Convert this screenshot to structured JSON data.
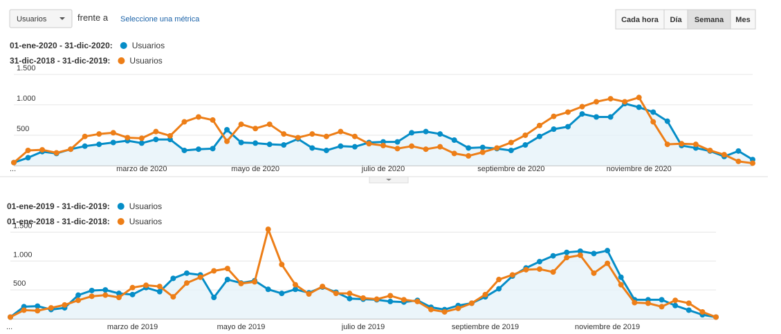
{
  "toolbar": {
    "metric": "Usuarios",
    "versus": "frente a",
    "select_metric": "Seleccione una métrica",
    "buttons": [
      "Cada hora",
      "Día",
      "Semana",
      "Mes"
    ],
    "selected": "Semana"
  },
  "chart_data": [
    {
      "type": "line",
      "categories": [
        "...",
        null,
        null,
        null,
        null,
        null,
        null,
        null,
        null,
        "marzo de 2020",
        null,
        null,
        null,
        null,
        null,
        null,
        null,
        "mayo de 2020",
        null,
        null,
        null,
        null,
        null,
        null,
        null,
        null,
        "julio de 2020",
        null,
        null,
        null,
        null,
        null,
        null,
        null,
        null,
        "septiembre de 2020",
        null,
        null,
        null,
        null,
        null,
        null,
        null,
        null,
        "noviembre de 2020",
        null,
        null,
        null,
        null,
        null,
        null,
        null,
        null
      ],
      "series": [
        {
          "period": "01-ene-2020 - 31-dic-2020:",
          "name": "Usuarios",
          "color": "#058dc7",
          "values": [
            50,
            130,
            230,
            200,
            270,
            320,
            350,
            380,
            410,
            370,
            430,
            430,
            250,
            270,
            280,
            590,
            380,
            370,
            350,
            340,
            440,
            290,
            250,
            320,
            310,
            380,
            390,
            390,
            540,
            560,
            520,
            420,
            290,
            300,
            280,
            250,
            340,
            480,
            600,
            640,
            850,
            800,
            800,
            1020,
            960,
            880,
            730,
            330,
            290,
            240,
            150,
            240,
            100
          ]
        },
        {
          "period": "31-dic-2018 - 31-dic-2019:",
          "name": "Usuarios",
          "color": "#ed7e17",
          "values": [
            50,
            250,
            260,
            210,
            270,
            480,
            520,
            540,
            460,
            450,
            560,
            490,
            720,
            800,
            750,
            400,
            680,
            610,
            680,
            520,
            460,
            520,
            480,
            560,
            480,
            360,
            330,
            280,
            320,
            270,
            310,
            200,
            160,
            220,
            290,
            380,
            500,
            660,
            810,
            880,
            970,
            1050,
            1100,
            1050,
            1120,
            720,
            350,
            360,
            350,
            250,
            180,
            70,
            40
          ]
        }
      ],
      "ylim": [
        0,
        1600
      ],
      "yticks": [
        500,
        {
          "value": 1000,
          "label": "1.000"
        },
        {
          "value": 1500,
          "label": "1.500"
        }
      ],
      "grid": true
    },
    {
      "type": "line",
      "categories": [
        "...",
        null,
        null,
        null,
        null,
        null,
        null,
        null,
        null,
        "marzo de 2019",
        null,
        null,
        null,
        null,
        null,
        null,
        null,
        "mayo de 2019",
        null,
        null,
        null,
        null,
        null,
        null,
        null,
        null,
        "julio de 2019",
        null,
        null,
        null,
        null,
        null,
        null,
        null,
        null,
        "septiembre de 2019",
        null,
        null,
        null,
        null,
        null,
        null,
        null,
        null,
        "noviembre de 2019",
        null,
        null,
        null,
        null,
        null,
        null,
        null,
        null
      ],
      "series": [
        {
          "period": "01-ene-2019 - 31-dic-2019:",
          "name": "Usuarios",
          "color": "#058dc7",
          "values": [
            30,
            210,
            220,
            160,
            190,
            410,
            490,
            500,
            440,
            420,
            540,
            470,
            700,
            790,
            760,
            370,
            680,
            620,
            660,
            510,
            440,
            510,
            450,
            550,
            460,
            350,
            340,
            330,
            300,
            290,
            320,
            200,
            160,
            230,
            270,
            380,
            520,
            740,
            880,
            990,
            1090,
            1150,
            1170,
            1130,
            1180,
            720,
            330,
            330,
            330,
            230,
            150,
            70,
            30
          ]
        },
        {
          "period": "01-ene-2018 - 31-dic-2018:",
          "name": "Usuarios",
          "color": "#ed7e17",
          "values": [
            30,
            150,
            140,
            190,
            240,
            320,
            390,
            410,
            370,
            540,
            580,
            560,
            380,
            620,
            720,
            830,
            870,
            610,
            640,
            1550,
            940,
            590,
            430,
            560,
            440,
            440,
            360,
            340,
            400,
            330,
            300,
            160,
            120,
            180,
            270,
            420,
            680,
            760,
            850,
            860,
            810,
            1060,
            1100,
            790,
            960,
            590,
            280,
            270,
            210,
            320,
            270,
            120,
            30
          ]
        }
      ],
      "ylim": [
        0,
        1600
      ],
      "yticks": [
        500,
        {
          "value": 1000,
          "label": "1.000"
        },
        {
          "value": 1500,
          "label": "1.500"
        }
      ],
      "grid": true
    }
  ]
}
